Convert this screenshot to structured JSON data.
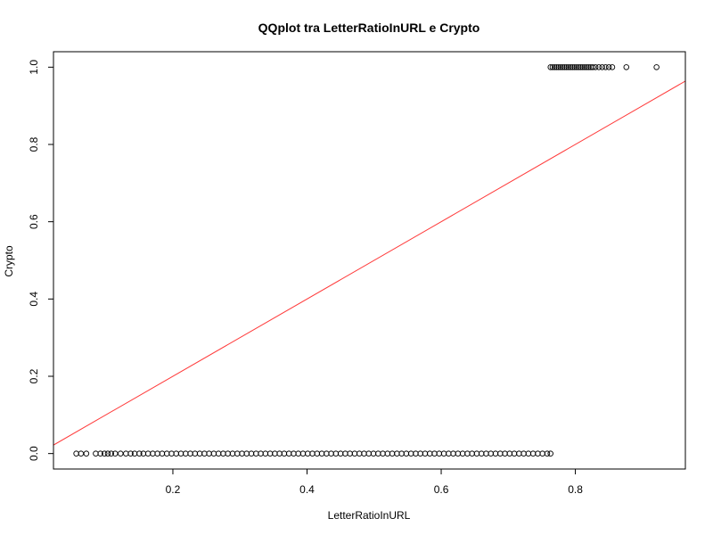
{
  "chart_data": {
    "type": "scatter",
    "title": "QQplot tra LetterRatioInURL e Crypto",
    "xlabel": "LetterRatioInURL",
    "ylabel": "Crypto",
    "xlim": [
      0.022,
      0.964
    ],
    "ylim": [
      -0.04,
      1.04
    ],
    "xticks": [
      0.2,
      0.4,
      0.6,
      0.8
    ],
    "xtick_labels": [
      "0.2",
      "0.4",
      "0.6",
      "0.8"
    ],
    "yticks": [
      0.0,
      0.2,
      0.4,
      0.6,
      0.8,
      1.0
    ],
    "ytick_labels": [
      "0.0",
      "0.2",
      "0.4",
      "0.6",
      "0.8",
      "1.0"
    ],
    "grid": false,
    "point_style": "open-circle",
    "point_color": "#000000",
    "reference_line": {
      "type": "y=x",
      "color": "#ff3b3b"
    },
    "series": [
      {
        "values_y": 0.0,
        "x": [
          0.056,
          0.063,
          0.071,
          0.085,
          0.092,
          0.098,
          0.103,
          0.108,
          0.114,
          0.122,
          0.13,
          0.137,
          0.143,
          0.15,
          0.156,
          0.163,
          0.17,
          0.177,
          0.184,
          0.191,
          0.198,
          0.205,
          0.212,
          0.219,
          0.226,
          0.233,
          0.24,
          0.247,
          0.254,
          0.261,
          0.268,
          0.275,
          0.282,
          0.289,
          0.296,
          0.303,
          0.31,
          0.317,
          0.324,
          0.331,
          0.338,
          0.345,
          0.352,
          0.359,
          0.366,
          0.373,
          0.38,
          0.387,
          0.394,
          0.401,
          0.408,
          0.415,
          0.422,
          0.429,
          0.436,
          0.443,
          0.45,
          0.457,
          0.464,
          0.471,
          0.478,
          0.485,
          0.492,
          0.499,
          0.506,
          0.513,
          0.52,
          0.527,
          0.534,
          0.541,
          0.548,
          0.555,
          0.562,
          0.569,
          0.576,
          0.583,
          0.59,
          0.597,
          0.604,
          0.611,
          0.618,
          0.625,
          0.632,
          0.639,
          0.646,
          0.653,
          0.66,
          0.667,
          0.674,
          0.681,
          0.688,
          0.695,
          0.702,
          0.709,
          0.716,
          0.723,
          0.73,
          0.737,
          0.744,
          0.751,
          0.758,
          0.763
        ]
      },
      {
        "values_y": 1.0,
        "x": [
          0.763,
          0.766,
          0.769,
          0.772,
          0.775,
          0.778,
          0.781,
          0.784,
          0.787,
          0.79,
          0.793,
          0.796,
          0.799,
          0.802,
          0.805,
          0.808,
          0.811,
          0.814,
          0.817,
          0.82,
          0.823,
          0.826,
          0.83,
          0.835,
          0.84,
          0.845,
          0.85,
          0.855,
          0.876,
          0.921
        ]
      }
    ]
  }
}
